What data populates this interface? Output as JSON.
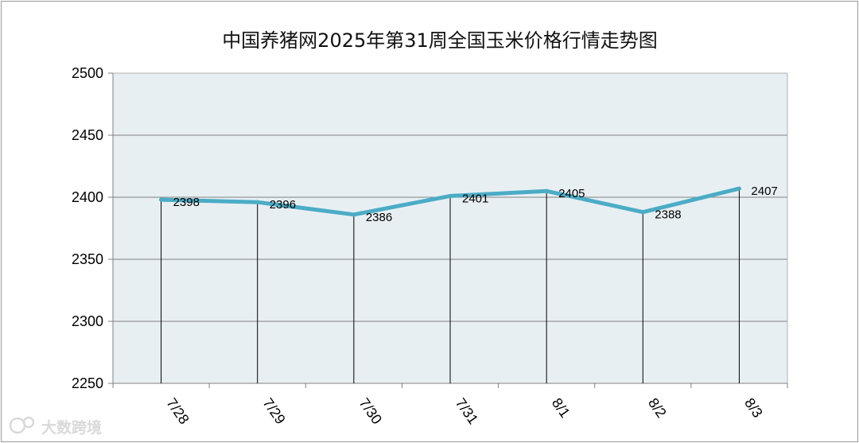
{
  "chart_data": {
    "type": "line",
    "title": "中国养猪网2025年第31周全国玉米价格行情走势图",
    "categories": [
      "7/28",
      "7/29",
      "7/30",
      "7/31",
      "8/1",
      "8/2",
      "8/3"
    ],
    "series": [
      {
        "values": [
          2398,
          2396,
          2386,
          2401,
          2405,
          2388,
          2407
        ]
      }
    ],
    "data_labels": [
      "2398",
      "2396",
      "2386",
      "2401",
      "2405",
      "2388",
      "2407"
    ],
    "y_ticks": [
      "2500",
      "2450",
      "2400",
      "2350",
      "2300",
      "2250"
    ],
    "ylim": [
      2250,
      2500
    ],
    "xlabel": "",
    "ylabel": "",
    "grid": true,
    "drop_lines": true,
    "colors": {
      "line": "#4bacc6",
      "plot_bg": "#e8eff3",
      "grid": "#808080"
    }
  },
  "watermark": {
    "text": "大数跨境"
  }
}
